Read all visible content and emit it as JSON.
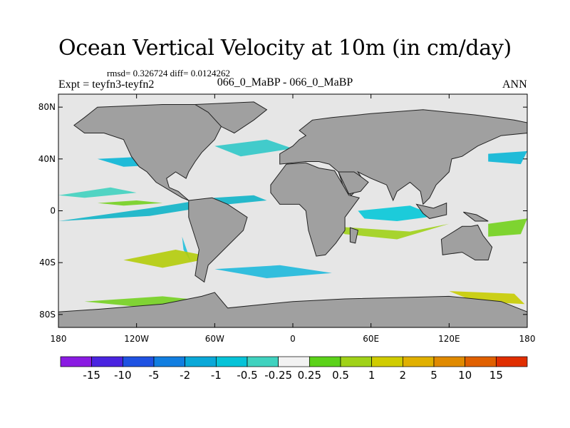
{
  "header": {
    "title": "Ocean Vertical Velocity at 10m (in cm/day)",
    "stats": "rmsd= 0.326724  diff= 0.0124262",
    "experiment": "Expt = teyfn3-teyfn2",
    "cases": "066_0_MaBP - 066_0_MaBP",
    "season": "ANN"
  },
  "map": {
    "lon_range": [
      -180,
      180
    ],
    "lat_range": [
      -90,
      90
    ],
    "lat_ticks": [
      {
        "value": 80,
        "label": "80N"
      },
      {
        "value": 40,
        "label": "40N"
      },
      {
        "value": 0,
        "label": "0"
      },
      {
        "value": -40,
        "label": "40S"
      },
      {
        "value": -80,
        "label": "80S"
      }
    ],
    "lon_ticks": [
      {
        "value": -180,
        "label": "180"
      },
      {
        "value": -120,
        "label": "120W"
      },
      {
        "value": -60,
        "label": "60W"
      },
      {
        "value": 0,
        "label": "0"
      },
      {
        "value": 60,
        "label": "60E"
      },
      {
        "value": 120,
        "label": "120E"
      },
      {
        "value": 180,
        "label": "180"
      }
    ],
    "land_color": "#a0a0a0",
    "ocean_color": "#e6e6e6",
    "land_polygons": [
      {
        "name": "north-america",
        "lonlat": [
          [
            -150,
            80
          ],
          [
            -100,
            82
          ],
          [
            -60,
            82
          ],
          [
            -45,
            78
          ],
          [
            -55,
            65
          ],
          [
            -60,
            55
          ],
          [
            -70,
            45
          ],
          [
            -75,
            38
          ],
          [
            -80,
            30
          ],
          [
            -82,
            25
          ],
          [
            -90,
            30
          ],
          [
            -97,
            25
          ],
          [
            -95,
            18
          ],
          [
            -88,
            15
          ],
          [
            -80,
            8
          ],
          [
            -85,
            10
          ],
          [
            -95,
            16
          ],
          [
            -105,
            22
          ],
          [
            -112,
            30
          ],
          [
            -118,
            34
          ],
          [
            -124,
            42
          ],
          [
            -130,
            55
          ],
          [
            -145,
            60
          ],
          [
            -160,
            60
          ],
          [
            -168,
            66
          ],
          [
            -160,
            72
          ]
        ]
      },
      {
        "name": "greenland",
        "lonlat": [
          [
            -75,
            82
          ],
          [
            -30,
            84
          ],
          [
            -20,
            78
          ],
          [
            -30,
            70
          ],
          [
            -45,
            60
          ],
          [
            -55,
            65
          ],
          [
            -65,
            76
          ]
        ]
      },
      {
        "name": "south-america",
        "lonlat": [
          [
            -80,
            8
          ],
          [
            -62,
            10
          ],
          [
            -50,
            5
          ],
          [
            -35,
            -5
          ],
          [
            -38,
            -15
          ],
          [
            -48,
            -25
          ],
          [
            -58,
            -35
          ],
          [
            -65,
            -42
          ],
          [
            -68,
            -55
          ],
          [
            -75,
            -50
          ],
          [
            -72,
            -30
          ],
          [
            -80,
            -5
          ]
        ]
      },
      {
        "name": "eurasia",
        "lonlat": [
          [
            -10,
            36
          ],
          [
            -10,
            44
          ],
          [
            0,
            50
          ],
          [
            5,
            55
          ],
          [
            10,
            58
          ],
          [
            5,
            62
          ],
          [
            15,
            70
          ],
          [
            30,
            72
          ],
          [
            60,
            75
          ],
          [
            100,
            78
          ],
          [
            140,
            74
          ],
          [
            170,
            70
          ],
          [
            180,
            68
          ],
          [
            180,
            60
          ],
          [
            160,
            58
          ],
          [
            142,
            50
          ],
          [
            130,
            42
          ],
          [
            122,
            40
          ],
          [
            120,
            30
          ],
          [
            110,
            20
          ],
          [
            105,
            10
          ],
          [
            100,
            5
          ],
          [
            98,
            15
          ],
          [
            90,
            22
          ],
          [
            80,
            15
          ],
          [
            77,
            8
          ],
          [
            72,
            20
          ],
          [
            60,
            25
          ],
          [
            50,
            30
          ],
          [
            55,
            22
          ],
          [
            45,
            12
          ],
          [
            40,
            15
          ],
          [
            35,
            30
          ],
          [
            28,
            36
          ],
          [
            20,
            38
          ],
          [
            10,
            38
          ]
        ]
      },
      {
        "name": "africa",
        "lonlat": [
          [
            -17,
            20
          ],
          [
            -17,
            14
          ],
          [
            -10,
            5
          ],
          [
            5,
            5
          ],
          [
            10,
            0
          ],
          [
            12,
            -15
          ],
          [
            18,
            -35
          ],
          [
            25,
            -34
          ],
          [
            33,
            -25
          ],
          [
            40,
            -15
          ],
          [
            40,
            -5
          ],
          [
            51,
            10
          ],
          [
            43,
            12
          ],
          [
            32,
            31
          ],
          [
            20,
            33
          ],
          [
            10,
            37
          ],
          [
            -5,
            36
          ]
        ]
      },
      {
        "name": "arabia",
        "lonlat": [
          [
            35,
            30
          ],
          [
            43,
            13
          ],
          [
            52,
            15
          ],
          [
            58,
            22
          ],
          [
            50,
            28
          ],
          [
            47,
            30
          ]
        ]
      },
      {
        "name": "madagascar",
        "lonlat": [
          [
            44,
            -13
          ],
          [
            50,
            -15
          ],
          [
            48,
            -25
          ],
          [
            44,
            -24
          ]
        ]
      },
      {
        "name": "australia",
        "lonlat": [
          [
            114,
            -22
          ],
          [
            130,
            -12
          ],
          [
            137,
            -12
          ],
          [
            142,
            -11
          ],
          [
            146,
            -19
          ],
          [
            153,
            -28
          ],
          [
            150,
            -38
          ],
          [
            140,
            -38
          ],
          [
            130,
            -32
          ],
          [
            115,
            -34
          ]
        ]
      },
      {
        "name": "new-guinea",
        "lonlat": [
          [
            131,
            -1
          ],
          [
            141,
            -3
          ],
          [
            150,
            -8
          ],
          [
            140,
            -8
          ]
        ]
      },
      {
        "name": "borneo-sumatra",
        "lonlat": [
          [
            95,
            5
          ],
          [
            108,
            2
          ],
          [
            118,
            6
          ],
          [
            118,
            -3
          ],
          [
            105,
            -6
          ],
          [
            100,
            -2
          ]
        ]
      },
      {
        "name": "antarctica",
        "lonlat": [
          [
            -180,
            -78
          ],
          [
            -150,
            -76
          ],
          [
            -100,
            -72
          ],
          [
            -70,
            -66
          ],
          [
            -60,
            -63
          ],
          [
            -50,
            -75
          ],
          [
            -20,
            -72
          ],
          [
            0,
            -70
          ],
          [
            40,
            -68
          ],
          [
            80,
            -67
          ],
          [
            120,
            -66
          ],
          [
            160,
            -70
          ],
          [
            180,
            -78
          ],
          [
            180,
            -90
          ],
          [
            -180,
            -90
          ]
        ]
      }
    ],
    "velocity_bands": [
      {
        "color": "#10b4c8",
        "lonlat": [
          [
            -180,
            -8
          ],
          [
            -110,
            2
          ],
          [
            -60,
            10
          ],
          [
            -30,
            12
          ],
          [
            -20,
            8
          ],
          [
            -60,
            4
          ],
          [
            -110,
            -4
          ]
        ]
      },
      {
        "color": "#74d020",
        "lonlat": [
          [
            -150,
            6
          ],
          [
            -120,
            8
          ],
          [
            -100,
            6
          ],
          [
            -130,
            4
          ]
        ]
      },
      {
        "color": "#40d2bf",
        "lonlat": [
          [
            -180,
            12
          ],
          [
            -140,
            18
          ],
          [
            -120,
            14
          ],
          [
            -160,
            10
          ]
        ]
      },
      {
        "color": "#06c8d8",
        "lonlat": [
          [
            50,
            0
          ],
          [
            90,
            4
          ],
          [
            110,
            -4
          ],
          [
            80,
            -8
          ],
          [
            55,
            -6
          ]
        ]
      },
      {
        "color": "#a0d218",
        "lonlat": [
          [
            30,
            -12
          ],
          [
            90,
            -16
          ],
          [
            120,
            -10
          ],
          [
            80,
            -22
          ],
          [
            40,
            -18
          ]
        ]
      },
      {
        "color": "#20c0dc",
        "lonlat": [
          [
            -85,
            -20
          ],
          [
            -78,
            -40
          ],
          [
            -72,
            -50
          ],
          [
            -84,
            -30
          ]
        ]
      },
      {
        "color": "#b4cc0a",
        "lonlat": [
          [
            -130,
            -38
          ],
          [
            -90,
            -30
          ],
          [
            -60,
            -36
          ],
          [
            -100,
            -44
          ]
        ]
      },
      {
        "color": "#72d21c",
        "lonlat": [
          [
            150,
            -10
          ],
          [
            180,
            -6
          ],
          [
            175,
            -18
          ],
          [
            150,
            -20
          ]
        ]
      },
      {
        "color": "#1eb9dc",
        "lonlat": [
          [
            -60,
            -45
          ],
          [
            -10,
            -42
          ],
          [
            30,
            -48
          ],
          [
            -20,
            -52
          ]
        ]
      },
      {
        "color": "#74d020",
        "lonlat": [
          [
            -160,
            -70
          ],
          [
            -100,
            -66
          ],
          [
            -60,
            -70
          ],
          [
            -120,
            -74
          ]
        ]
      },
      {
        "color": "#c8cc00",
        "lonlat": [
          [
            120,
            -62
          ],
          [
            170,
            -64
          ],
          [
            178,
            -72
          ],
          [
            140,
            -70
          ]
        ]
      },
      {
        "color": "#0ab6d6",
        "lonlat": [
          [
            -150,
            40
          ],
          [
            -110,
            42
          ],
          [
            -90,
            36
          ],
          [
            -130,
            34
          ]
        ]
      },
      {
        "color": "#0ab6d6",
        "lonlat": [
          [
            150,
            44
          ],
          [
            180,
            46
          ],
          [
            175,
            36
          ],
          [
            150,
            38
          ]
        ]
      },
      {
        "color": "#30c8c8",
        "lonlat": [
          [
            -60,
            50
          ],
          [
            -20,
            55
          ],
          [
            0,
            48
          ],
          [
            -40,
            42
          ]
        ]
      }
    ]
  },
  "colorbar": {
    "colors": [
      "#8a1be2",
      "#4a24e0",
      "#1f52e2",
      "#117ee0",
      "#0aa8d8",
      "#06c3d8",
      "#40d2bf",
      "#f2f2f2",
      "#5cd21a",
      "#a0d218",
      "#d0cc00",
      "#e0b000",
      "#e08a00",
      "#e06000",
      "#e02e00"
    ],
    "labels": [
      "-15",
      "-10",
      "-5",
      "-2",
      "-1",
      "-0.5",
      "-0.25",
      "0.25",
      "0.5",
      "1",
      "2",
      "5",
      "10",
      "15"
    ]
  }
}
